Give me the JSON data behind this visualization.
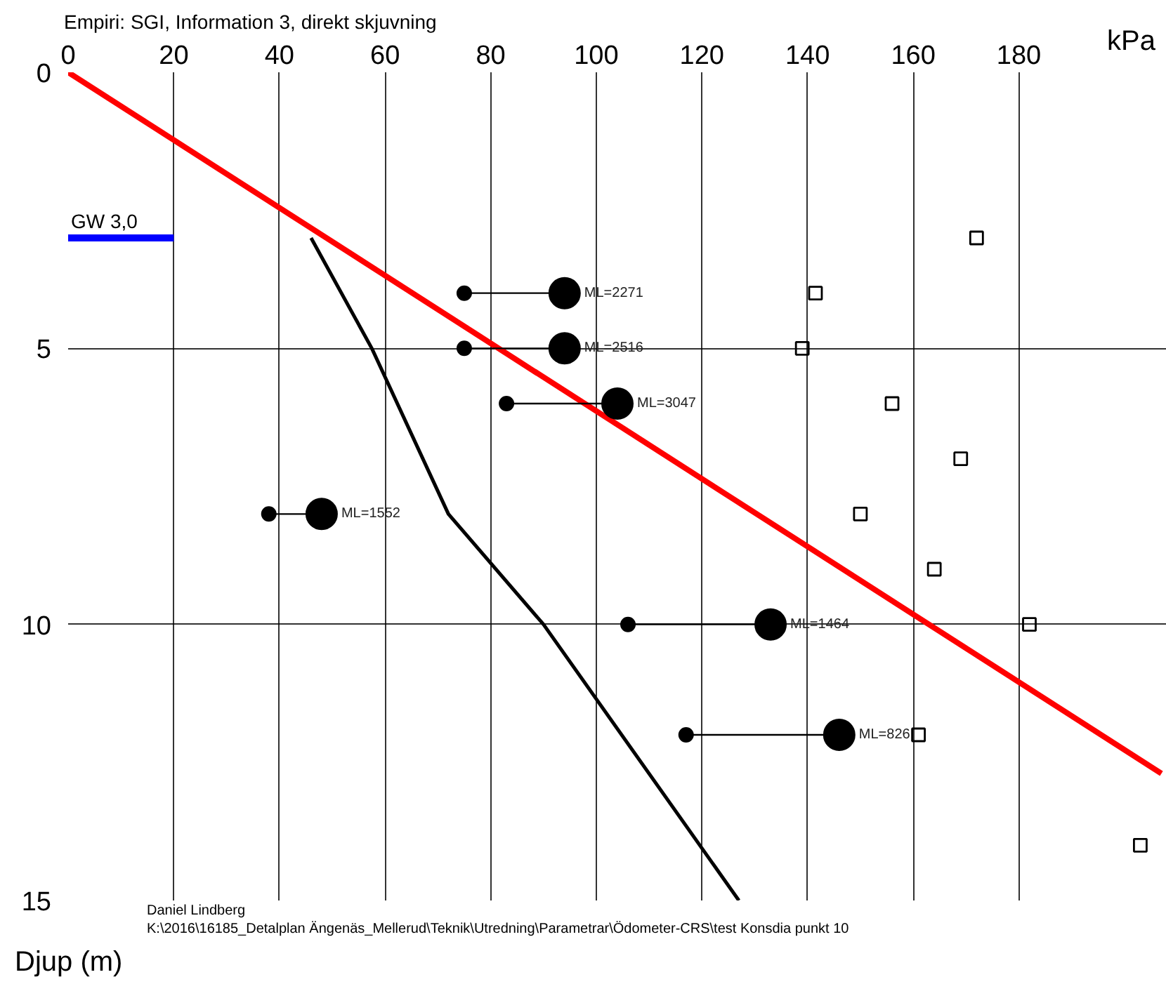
{
  "chart_data": {
    "type": "scatter",
    "title": "Empiri:  SGI, Information 3, direkt skjuvning",
    "xlabel": "kPa",
    "ylabel": "Djup (m)",
    "xlim": [
      0,
      208
    ],
    "ylim": [
      15,
      0
    ],
    "xticks": [
      0,
      20,
      40,
      60,
      80,
      100,
      120,
      140,
      160,
      180
    ],
    "yticks": [
      0,
      5,
      10,
      15
    ],
    "grid": true,
    "legend": false,
    "series": [
      {
        "type": "line",
        "color": "#ff0000",
        "x": [
          0,
          207
        ],
        "values": [
          0,
          12.7
        ],
        "line_style": "solid"
      },
      {
        "type": "line",
        "color": "#000000",
        "x": [
          46,
          57.5,
          72,
          90,
          127
        ],
        "values": [
          3,
          5,
          8,
          10,
          15
        ],
        "line_style": "solid"
      },
      {
        "type": "line",
        "name": "GW  3,0",
        "color": "#0000ff",
        "x": [
          0,
          20
        ],
        "values": [
          3,
          3
        ],
        "line_style": "solid"
      },
      {
        "type": "line",
        "color": "#000000",
        "x": [
          75,
          94
        ],
        "values": [
          4,
          4
        ],
        "line_style": "solid"
      },
      {
        "type": "line",
        "color": "#000000",
        "x": [
          75,
          94
        ],
        "values": [
          5,
          5
        ],
        "line_style": "solid"
      },
      {
        "type": "line",
        "color": "#000000",
        "x": [
          83,
          104
        ],
        "values": [
          6,
          6
        ],
        "line_style": "solid"
      },
      {
        "type": "line",
        "color": "#000000",
        "x": [
          38,
          48
        ],
        "values": [
          8,
          8
        ],
        "line_style": "solid"
      },
      {
        "type": "line",
        "color": "#000000",
        "x": [
          106,
          133
        ],
        "values": [
          10,
          10
        ],
        "line_style": "solid"
      },
      {
        "type": "line",
        "color": "#000000",
        "x": [
          117,
          146
        ],
        "values": [
          12,
          12
        ],
        "line_style": "solid"
      },
      {
        "type": "scatter",
        "marker": "circle",
        "color": "#000000",
        "x": [
          75,
          75,
          83,
          38,
          106,
          117
        ],
        "values": [
          4,
          5,
          6,
          8,
          10,
          12
        ]
      },
      {
        "type": "scatter",
        "marker": "circle",
        "color": "#000000",
        "x": [
          94,
          94,
          104,
          48,
          133,
          146
        ],
        "values": [
          4,
          5,
          6,
          8,
          10,
          12
        ]
      },
      {
        "type": "scatter",
        "marker": "square",
        "color": "#000000",
        "x": [
          172,
          141.5,
          139,
          156,
          169,
          150,
          164,
          182,
          161,
          203
        ],
        "values": [
          3,
          4,
          5,
          6,
          7,
          8,
          9,
          10,
          12,
          14
        ]
      }
    ],
    "annotations": [
      {
        "text": "ML=2271",
        "x": 94,
        "y": 4
      },
      {
        "text": "ML=2516",
        "x": 94,
        "y": 5
      },
      {
        "text": "ML=3047",
        "x": 104,
        "y": 6
      },
      {
        "text": "ML=1552",
        "x": 48,
        "y": 8
      },
      {
        "text": "ML=1464",
        "x": 133,
        "y": 10
      },
      {
        "text": "ML=826",
        "x": 146,
        "y": 12
      },
      "Daniel Lindberg",
      "K:\\2016\\16185_Detalplan Ängenäs_Mellerud\\Teknik\\Utredning\\Parametrar\\Ödometer-CRS\\test Konsdia punkt 10"
    ]
  }
}
